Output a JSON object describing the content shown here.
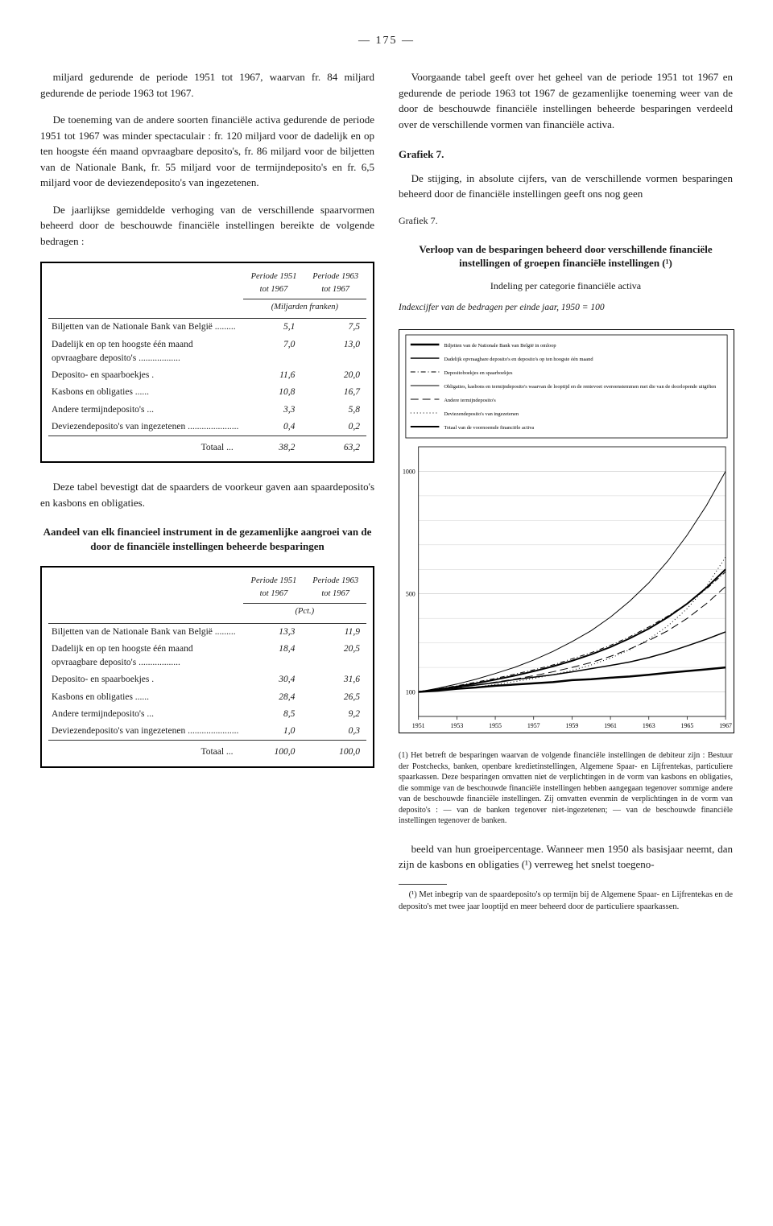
{
  "pageNumber": "— 175 —",
  "left": {
    "p1": "miljard gedurende de periode 1951 tot 1967, waarvan fr. 84 miljard gedurende de periode 1963 tot 1967.",
    "p2": "De toeneming van de andere soorten financiële activa gedurende de periode 1951 tot 1967 was minder spectaculair : fr. 120 miljard voor de dadelijk en op ten hoogste één maand opvraagbare deposito's, fr. 86 miljard voor de biljetten van de Nationale Bank, fr. 55 miljard voor de termijndeposito's en fr. 6,5 miljard voor de deviezendeposito's van ingezetenen.",
    "p3": "De jaarlijkse gemiddelde verhoging van de verschillende spaarvormen beheerd door de beschouwde financiële instellingen bereikte de volgende bedragen :",
    "table1": {
      "header1a": "Periode 1951 tot 1967",
      "header1b": "Periode 1963 tot 1967",
      "unit": "(Miljarden franken)",
      "rows": [
        {
          "label": "Biljetten van de Nationale Bank van België .........",
          "v1": "5,1",
          "v2": "7,5"
        },
        {
          "label": "Dadelijk en op ten hoogste één maand opvraagbare deposito's ..................",
          "v1": "7,0",
          "v2": "13,0"
        },
        {
          "label": "Deposito- en spaarboekjes .",
          "v1": "11,6",
          "v2": "20,0"
        },
        {
          "label": "Kasbons en obligaties ......",
          "v1": "10,8",
          "v2": "16,7"
        },
        {
          "label": "Andere termijndeposito's ...",
          "v1": "3,3",
          "v2": "5,8"
        },
        {
          "label": "Deviezendeposito's van ingezetenen ......................",
          "v1": "0,4",
          "v2": "0,2"
        }
      ],
      "totalLabel": "Totaal ...",
      "totalV1": "38,2",
      "totalV2": "63,2"
    },
    "p4": "Deze tabel bevestigt dat de spaarders de voorkeur gaven aan spaardeposito's en kasbons en obligaties.",
    "table2title": "Aandeel van elk financieel instrument in de gezamenlijke aangroei van de door de financiële instellingen beheerde besparingen",
    "table2": {
      "header1a": "Periode 1951 tot 1967",
      "header1b": "Periode 1963 tot 1967",
      "unit": "(Pct.)",
      "rows": [
        {
          "label": "Biljetten van de Nationale Bank van België .........",
          "v1": "13,3",
          "v2": "11,9"
        },
        {
          "label": "Dadelijk en op ten hoogste één maand opvraagbare deposito's ..................",
          "v1": "18,4",
          "v2": "20,5"
        },
        {
          "label": "Deposito- en spaarboekjes .",
          "v1": "30,4",
          "v2": "31,6"
        },
        {
          "label": "Kasbons en obligaties ......",
          "v1": "28,4",
          "v2": "26,5"
        },
        {
          "label": "Andere termijndeposito's ...",
          "v1": "8,5",
          "v2": "9,2"
        },
        {
          "label": "Deviezendeposito's van ingezetenen ......................",
          "v1": "1,0",
          "v2": "0,3"
        }
      ],
      "totalLabel": "Totaal ...",
      "totalV1": "100,0",
      "totalV2": "100,0"
    }
  },
  "right": {
    "p1": "Voorgaande tabel geeft over het geheel van de periode 1951 tot 1967 en gedurende de periode 1963 tot 1967 de gezamenlijke toeneming weer van de door de beschouwde financiële instellingen beheerde besparingen verdeeld over de verschillende vormen van financiële activa.",
    "h1": "Grafiek 7.",
    "p2": "De stijging, in absolute cijfers, van de verschillende vormen besparingen beheerd door de financiële instellingen geeft ons nog geen",
    "gcap": "Grafiek 7.",
    "chartTitle": "Verloop van de besparingen beheerd door verschillende financiële instellingen of groepen financiële instellingen (¹)",
    "subtitle": "Indeling per categorie financiële activa",
    "indexCaption": "Indexcijfer van de bedragen per einde jaar, 1950 = 100",
    "chart": {
      "background": "#ffffff",
      "grid": "#b0b0b0",
      "xlabels": [
        "1951",
        "1953",
        "1955",
        "1957",
        "1959",
        "1961",
        "1963",
        "1965",
        "1967"
      ],
      "ylim": [
        0,
        1100
      ],
      "yticks": [
        100,
        500,
        1000
      ],
      "legend": [
        "Biljetten van de Nationale Bank van België in omloop",
        "Dadelijk opvraagbare deposito's en deposito's op ten hoogste één maand",
        "Depositoboekjes en spaarboekjes",
        "Obligaties, kasbons en termijndeposito's waarvan de looptijd en de rentevoet overeenstemmen met die van de doorlopende uitgiften",
        "Andere termijndeposito's",
        "Deviezendeposito's van ingezetenen",
        "Totaal van de voornoemde financiële activa"
      ],
      "series": [
        {
          "name": "Biljetten",
          "style": "solid",
          "width": 2.5,
          "color": "#000",
          "y": [
            100,
            105,
            113,
            118,
            125,
            130,
            135,
            140,
            148,
            152,
            158,
            163,
            170,
            178,
            185,
            192,
            200
          ]
        },
        {
          "name": "Dadelijk",
          "style": "solid",
          "width": 1.5,
          "color": "#000",
          "y": [
            100,
            110,
            120,
            128,
            138,
            150,
            160,
            170,
            182,
            195,
            208,
            222,
            240,
            262,
            288,
            315,
            345
          ]
        },
        {
          "name": "Depositoboekjes",
          "style": "dash-dot",
          "width": 1,
          "color": "#000",
          "y": [
            100,
            112,
            125,
            140,
            155,
            172,
            190,
            210,
            235,
            260,
            290,
            325,
            365,
            410,
            460,
            520,
            590
          ]
        },
        {
          "name": "Obligaties",
          "style": "solid",
          "width": 1,
          "color": "#000",
          "y": [
            100,
            115,
            132,
            152,
            175,
            200,
            230,
            265,
            305,
            350,
            405,
            470,
            545,
            635,
            740,
            860,
            1000
          ]
        },
        {
          "name": "Andere termijn",
          "style": "long-dash",
          "width": 1,
          "color": "#000",
          "y": [
            100,
            108,
            118,
            128,
            140,
            152,
            166,
            182,
            200,
            220,
            245,
            275,
            310,
            350,
            400,
            460,
            530
          ]
        },
        {
          "name": "Deviezen",
          "style": "dotted",
          "width": 1,
          "color": "#000",
          "y": [
            100,
            105,
            112,
            120,
            130,
            142,
            155,
            170,
            188,
            210,
            238,
            272,
            315,
            370,
            440,
            530,
            650
          ]
        },
        {
          "name": "Totaal",
          "style": "solid",
          "width": 2,
          "color": "#000",
          "y": [
            100,
            110,
            122,
            135,
            150,
            166,
            184,
            204,
            227,
            253,
            283,
            318,
            358,
            405,
            460,
            525,
            600
          ]
        }
      ]
    },
    "footnote1": "(1) Het betreft de besparingen waarvan de volgende financiële instellingen de debiteur zijn : Bestuur der Postchecks, banken, openbare kredietinstellingen, Algemene Spaar- en Lijfrentekas, particuliere spaarkassen. Deze besparingen omvatten niet de verplichtingen in de vorm van kasbons en obligaties, die sommige van de beschouwde financiële instellingen hebben aangegaan tegenover sommige andere van de beschouwde financiële instellingen. Zij omvatten evenmin de verplichtingen in de vorm van deposito's : — van de banken tegenover niet-ingezetenen; — van de beschouwde financiële instellingen tegenover de banken.",
    "p3": "beeld van hun groeipercentage. Wanneer men 1950 als basisjaar neemt, dan zijn de kasbons en obligaties (¹) verreweg het snelst toegeno-",
    "footnote2": "(¹) Met inbegrip van de spaardeposito's op termijn bij de Algemene Spaar- en Lijfrentekas en de deposito's met twee jaar looptijd en meer beheerd door de particuliere spaarkassen."
  }
}
